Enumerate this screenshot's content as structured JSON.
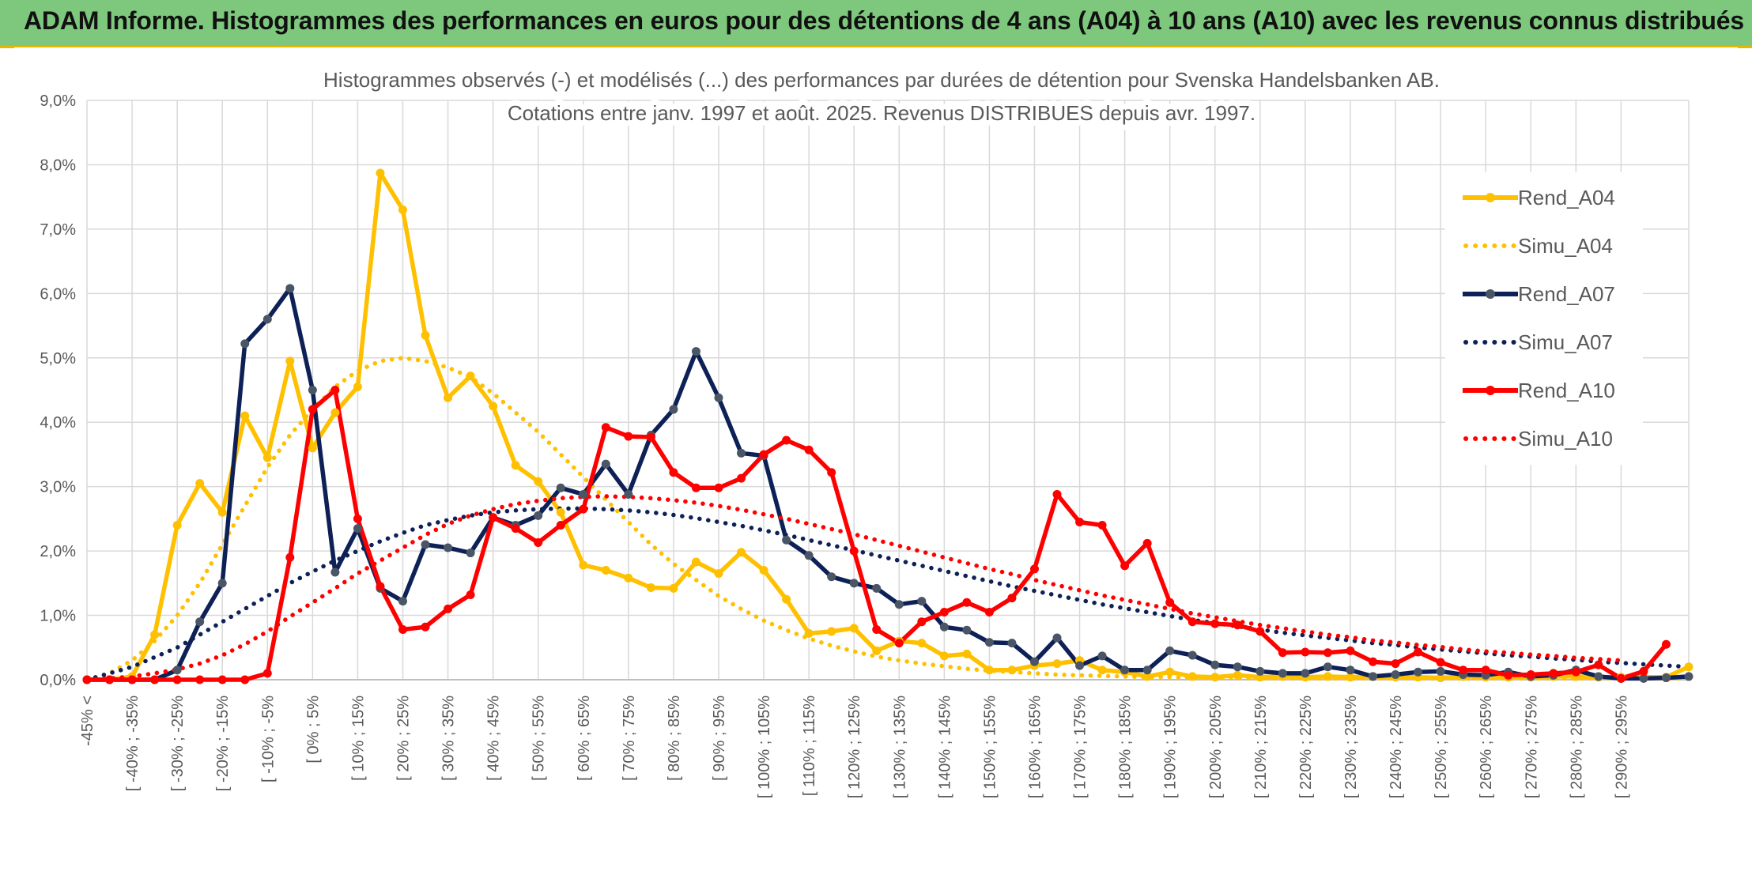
{
  "header": {
    "title": "ADAM Informe. Histogrammes des performances en euros pour des détentions de 4 ans (A04) à 10 ans (A10) avec les revenus connus distribués"
  },
  "chart_data": {
    "type": "line",
    "title": "Histogrammes observés (-) et modélisés (...) des performances par durées de détention pour Svenska Handelsbanken AB.",
    "subtitle": "Cotations entre janv. 1997 et août. 2025. Revenus DISTRIBUES depuis avr. 1997.",
    "xlabel": "",
    "ylabel": "",
    "ylim": [
      0,
      9
    ],
    "grid": true,
    "legend_position": "right",
    "y_ticks": [
      "0,0%",
      "1,0%",
      "2,0%",
      "3,0%",
      "4,0%",
      "5,0%",
      "6,0%",
      "7,0%",
      "8,0%",
      "9,0%"
    ],
    "x_tick_labels": [
      "-45% <",
      "[ -40% ; -35%",
      "[ -30% ; -25%",
      "[ -20% ; -15%",
      "[ -10% ; -5%",
      "[ 0% ; 5%",
      "[ 10% ; 15%",
      "[ 20% ; 25%",
      "[ 30% ; 35%",
      "[ 40% ; 45%",
      "[ 50% ; 55%",
      "[ 60% ; 65%",
      "[ 70% ; 75%",
      "[ 80% ; 85%",
      "[ 90% ; 95%",
      "[ 100% ; 105%",
      "[ 110% ; 115%",
      "[ 120% ; 125%",
      "[ 130% ; 135%",
      "[ 140% ; 145%",
      "[ 150% ; 155%",
      "[ 160% ; 165%",
      "[ 170% ; 175%",
      "[ 180% ; 185%",
      "[ 190% ; 195%",
      "[ 200% ; 205%",
      "[ 210% ; 215%",
      "[ 220% ; 225%",
      "[ 230% ; 235%",
      "[ 240% ; 245%",
      "[ 250% ; 255%",
      "[ 260% ; 265%",
      "[ 270% ; 275%",
      "[ 280% ; 285%",
      "[ 290% ; 295%"
    ],
    "series": [
      {
        "name": "Rend_A04",
        "color": "#ffc000",
        "style": "solid",
        "markers": true,
        "values": [
          0,
          0,
          0.05,
          0.7,
          2.4,
          3.05,
          2.6,
          4.1,
          3.45,
          4.95,
          3.6,
          4.15,
          4.55,
          7.87,
          7.3,
          5.35,
          4.38,
          4.72,
          4.25,
          3.33,
          3.08,
          2.6,
          1.78,
          1.7,
          1.58,
          1.43,
          1.42,
          1.83,
          1.65,
          1.98,
          1.7,
          1.25,
          0.72,
          0.75,
          0.8,
          0.45,
          0.6,
          0.57,
          0.37,
          0.4,
          0.15,
          0.15,
          0.22,
          0.25,
          0.3,
          0.15,
          0.12,
          0.05,
          0.12,
          0.05,
          0.04,
          0.07,
          0.04,
          0.05,
          0.04,
          0.05,
          0.04,
          0.05,
          0.04,
          0.04,
          0.03,
          0.05,
          0.04,
          0.04,
          0.04,
          0.05,
          0.05,
          0.04,
          0.04,
          0.04,
          0.04,
          0.2
        ]
      },
      {
        "name": "Simu_A04",
        "color": "#ffc000",
        "style": "dotted",
        "markers": false,
        "values": [
          0,
          0.1,
          0.3,
          0.6,
          1.0,
          1.5,
          2.1,
          2.7,
          3.3,
          3.8,
          4.2,
          4.55,
          4.8,
          4.95,
          5.0,
          4.95,
          4.85,
          4.7,
          4.45,
          4.15,
          3.85,
          3.5,
          3.15,
          2.8,
          2.45,
          2.1,
          1.8,
          1.55,
          1.3,
          1.1,
          0.92,
          0.77,
          0.64,
          0.53,
          0.44,
          0.36,
          0.3,
          0.25,
          0.21,
          0.17,
          0.14,
          0.12,
          0.1,
          0.08,
          0.07,
          0.06,
          0.05,
          0.04,
          0.04,
          0.03,
          0.03,
          0.03,
          0.02,
          0.02,
          0.02,
          0.02,
          0.02,
          0.02,
          0.02,
          0.02,
          0.02,
          0.02,
          0.02,
          0.02,
          0.02,
          0.02,
          0.02,
          0.02,
          0.02,
          0.02,
          0.02,
          0.02
        ]
      },
      {
        "name": "Rend_A07",
        "color": "#0e2157",
        "style": "solid",
        "markers": true,
        "values": [
          0,
          0,
          0,
          0,
          0.15,
          0.9,
          1.5,
          5.22,
          5.6,
          6.08,
          4.5,
          1.67,
          2.35,
          1.42,
          1.22,
          2.1,
          2.05,
          1.97,
          2.52,
          2.4,
          2.55,
          2.98,
          2.88,
          3.35,
          2.88,
          3.8,
          4.2,
          5.1,
          4.38,
          3.52,
          3.48,
          2.17,
          1.93,
          1.6,
          1.5,
          1.42,
          1.17,
          1.22,
          0.82,
          0.77,
          0.58,
          0.57,
          0.28,
          0.65,
          0.22,
          0.37,
          0.15,
          0.15,
          0.45,
          0.38,
          0.23,
          0.2,
          0.13,
          0.1,
          0.1,
          0.2,
          0.15,
          0.05,
          0.08,
          0.12,
          0.13,
          0.08,
          0.07,
          0.12,
          0.05,
          0.07,
          0.15,
          0.05,
          0.02,
          0.02,
          0.03,
          0.05
        ]
      },
      {
        "name": "Simu_A07",
        "color": "#0e2157",
        "style": "dotted",
        "markers": false,
        "values": [
          0,
          0.1,
          0.2,
          0.35,
          0.5,
          0.7,
          0.9,
          1.1,
          1.3,
          1.5,
          1.68,
          1.85,
          2.0,
          2.15,
          2.28,
          2.4,
          2.48,
          2.55,
          2.6,
          2.63,
          2.65,
          2.66,
          2.66,
          2.65,
          2.63,
          2.6,
          2.56,
          2.51,
          2.45,
          2.39,
          2.32,
          2.25,
          2.17,
          2.09,
          2.01,
          1.93,
          1.85,
          1.77,
          1.69,
          1.61,
          1.53,
          1.45,
          1.38,
          1.31,
          1.24,
          1.17,
          1.11,
          1.05,
          0.99,
          0.93,
          0.88,
          0.83,
          0.78,
          0.73,
          0.69,
          0.65,
          0.61,
          0.57,
          0.54,
          0.5,
          0.47,
          0.44,
          0.41,
          0.38,
          0.36,
          0.33,
          0.31,
          0.28,
          0.26,
          0.24,
          0.22,
          0.2
        ]
      },
      {
        "name": "Rend_A10",
        "color": "#ff0000",
        "style": "solid",
        "markers": true,
        "values": [
          0,
          0,
          0,
          0,
          0,
          0,
          0,
          0,
          0.1,
          1.9,
          4.2,
          4.5,
          2.5,
          1.45,
          0.78,
          0.82,
          1.1,
          1.32,
          2.52,
          2.35,
          2.13,
          2.4,
          2.65,
          3.92,
          3.78,
          3.77,
          3.22,
          2.98,
          2.98,
          3.13,
          3.5,
          3.72,
          3.57,
          3.22,
          2.0,
          0.78,
          0.57,
          0.9,
          1.05,
          1.2,
          1.05,
          1.27,
          1.72,
          2.88,
          2.45,
          2.4,
          1.77,
          2.12,
          1.2,
          0.9,
          0.87,
          0.85,
          0.75,
          0.42,
          0.43,
          0.42,
          0.45,
          0.28,
          0.25,
          0.43,
          0.27,
          0.15,
          0.15,
          0.07,
          0.08,
          0.1,
          0.12,
          0.23,
          0.02,
          0.13,
          0.55
        ]
      },
      {
        "name": "Simu_A10",
        "color": "#ff0000",
        "style": "dotted",
        "markers": false,
        "values": [
          0,
          0.02,
          0.05,
          0.1,
          0.16,
          0.25,
          0.38,
          0.55,
          0.75,
          0.98,
          1.2,
          1.42,
          1.65,
          1.85,
          2.05,
          2.25,
          2.42,
          2.55,
          2.65,
          2.73,
          2.78,
          2.82,
          2.84,
          2.85,
          2.84,
          2.82,
          2.79,
          2.75,
          2.7,
          2.64,
          2.57,
          2.5,
          2.42,
          2.34,
          2.26,
          2.17,
          2.08,
          1.99,
          1.9,
          1.81,
          1.72,
          1.64,
          1.55,
          1.47,
          1.39,
          1.31,
          1.24,
          1.17,
          1.1,
          1.03,
          0.97,
          0.91,
          0.85,
          0.8,
          0.75,
          0.7,
          0.66,
          0.61,
          0.58,
          0.54,
          0.51,
          0.47,
          0.44,
          0.42,
          0.39,
          0.37,
          0.34,
          0.32,
          0.3
        ]
      }
    ]
  }
}
